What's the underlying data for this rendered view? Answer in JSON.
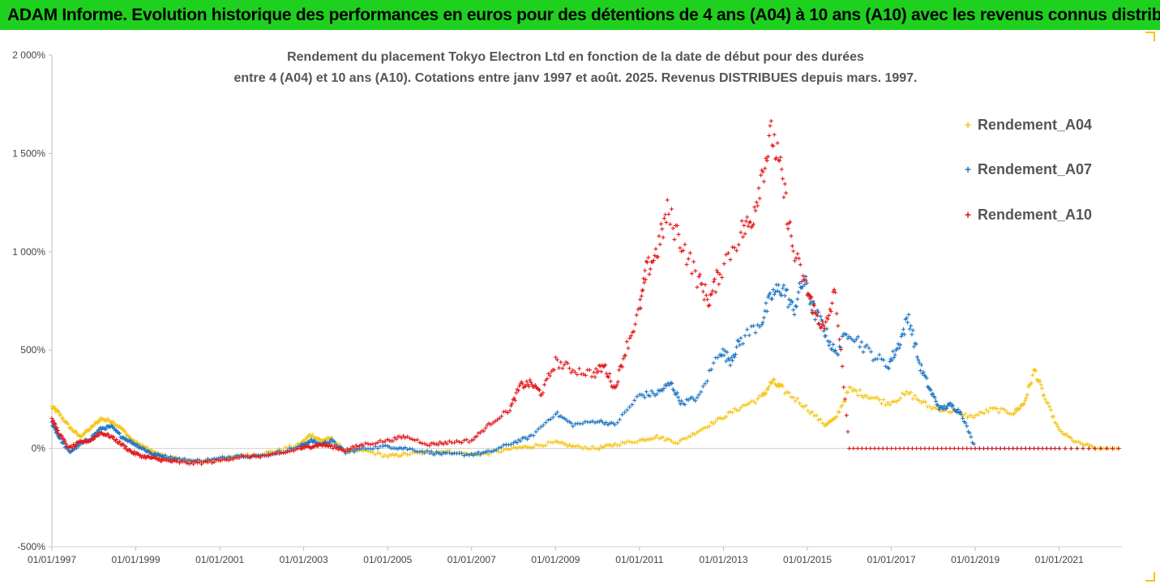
{
  "banner": {
    "title": "ADAM Informe. Evolution historique des performances en euros pour des détentions de 4 ans (A04) à 10 ans (A10) avec les revenus connus distribués"
  },
  "colors": {
    "banner_bg": "#1fd11f",
    "A04": "#f5c518",
    "A07": "#1f77c4",
    "A10": "#e31a1c",
    "frame_accent": "#f5c518"
  },
  "chart_data": {
    "type": "scatter",
    "title_line1": "Rendement du placement Tokyo Electron Ltd en fonction de la date de début pour des durées",
    "title_line2": "entre 4 (A04) et 10 ans (A10). Cotations entre janv 1997 et août. 2025. Revenus DISTRIBUES depuis mars. 1997.",
    "xlabel": "",
    "ylabel": "",
    "x_range": [
      "1997-01-01",
      "2022-06-30"
    ],
    "ylim": [
      -500,
      2000
    ],
    "y_ticks": [
      -500,
      0,
      500,
      1000,
      1500,
      2000
    ],
    "y_tick_labels": [
      "-500%",
      "0%",
      "500%",
      "1 000%",
      "1 500%",
      "2 000%"
    ],
    "x_tick_labels": [
      "01/01/1997",
      "01/01/1999",
      "01/01/2001",
      "01/01/2003",
      "01/01/2005",
      "01/01/2007",
      "01/01/2009",
      "01/01/2011",
      "01/01/2013",
      "01/01/2015",
      "01/01/2017",
      "01/01/2019",
      "01/01/2021"
    ],
    "x_tick_dates": [
      "1997-01-01",
      "1999-01-01",
      "2001-01-01",
      "2003-01-01",
      "2005-01-01",
      "2007-01-01",
      "2009-01-01",
      "2011-01-01",
      "2013-01-01",
      "2015-01-01",
      "2017-01-01",
      "2019-01-01",
      "2021-01-01"
    ],
    "legend_position": "right",
    "grid": false,
    "series": [
      {
        "name": "Rendement_A04",
        "marker": "+",
        "points": [
          [
            "1997-01-01",
            210
          ],
          [
            "1997-03-01",
            180
          ],
          [
            "1997-06-01",
            110
          ],
          [
            "1997-09-01",
            60
          ],
          [
            "1997-12-01",
            100
          ],
          [
            "1998-03-01",
            150
          ],
          [
            "1998-06-01",
            140
          ],
          [
            "1998-09-01",
            100
          ],
          [
            "1998-12-01",
            40
          ],
          [
            "1999-03-01",
            10
          ],
          [
            "1999-06-01",
            -20
          ],
          [
            "1999-09-01",
            -40
          ],
          [
            "2000-01-01",
            -55
          ],
          [
            "2000-06-01",
            -65
          ],
          [
            "2000-12-01",
            -60
          ],
          [
            "2001-06-01",
            -40
          ],
          [
            "2001-12-01",
            -30
          ],
          [
            "2002-06-01",
            -10
          ],
          [
            "2002-12-01",
            20
          ],
          [
            "2003-03-01",
            70
          ],
          [
            "2003-06-01",
            40
          ],
          [
            "2003-09-01",
            50
          ],
          [
            "2004-01-01",
            -20
          ],
          [
            "2004-06-01",
            -10
          ],
          [
            "2005-01-01",
            -40
          ],
          [
            "2005-06-01",
            -30
          ],
          [
            "2006-01-01",
            -20
          ],
          [
            "2006-06-01",
            -15
          ],
          [
            "2007-01-01",
            -30
          ],
          [
            "2007-06-01",
            -25
          ],
          [
            "2008-01-01",
            0
          ],
          [
            "2008-06-01",
            10
          ],
          [
            "2009-01-01",
            30
          ],
          [
            "2009-06-01",
            10
          ],
          [
            "2010-01-01",
            0
          ],
          [
            "2010-06-01",
            20
          ],
          [
            "2011-01-01",
            40
          ],
          [
            "2011-06-01",
            60
          ],
          [
            "2011-12-01",
            30
          ],
          [
            "2012-06-01",
            90
          ],
          [
            "2012-12-01",
            150
          ],
          [
            "2013-06-01",
            210
          ],
          [
            "2013-12-01",
            260
          ],
          [
            "2014-03-01",
            340
          ],
          [
            "2014-06-01",
            300
          ],
          [
            "2014-12-01",
            220
          ],
          [
            "2015-06-01",
            120
          ],
          [
            "2015-09-01",
            150
          ],
          [
            "2016-01-01",
            300
          ],
          [
            "2016-06-01",
            270
          ],
          [
            "2016-12-01",
            230
          ],
          [
            "2017-06-01",
            280
          ],
          [
            "2017-12-01",
            210
          ],
          [
            "2018-06-01",
            190
          ],
          [
            "2018-12-01",
            160
          ],
          [
            "2019-06-01",
            200
          ],
          [
            "2019-12-01",
            180
          ],
          [
            "2020-03-01",
            230
          ],
          [
            "2020-06-01",
            400
          ],
          [
            "2020-09-01",
            250
          ],
          [
            "2021-01-01",
            90
          ],
          [
            "2021-06-01",
            30
          ],
          [
            "2021-12-01",
            0
          ],
          [
            "2022-06-01",
            0
          ]
        ]
      },
      {
        "name": "Rendement_A07",
        "marker": "+",
        "points": [
          [
            "1997-01-01",
            130
          ],
          [
            "1997-03-01",
            60
          ],
          [
            "1997-06-01",
            -20
          ],
          [
            "1997-09-01",
            20
          ],
          [
            "1997-12-01",
            50
          ],
          [
            "1998-03-01",
            100
          ],
          [
            "1998-06-01",
            110
          ],
          [
            "1998-09-01",
            60
          ],
          [
            "1998-12-01",
            30
          ],
          [
            "1999-03-01",
            0
          ],
          [
            "1999-06-01",
            -30
          ],
          [
            "1999-09-01",
            -40
          ],
          [
            "2000-01-01",
            -55
          ],
          [
            "2000-06-01",
            -65
          ],
          [
            "2000-12-01",
            -55
          ],
          [
            "2001-06-01",
            -35
          ],
          [
            "2001-12-01",
            -40
          ],
          [
            "2002-06-01",
            -20
          ],
          [
            "2002-12-01",
            10
          ],
          [
            "2003-03-01",
            40
          ],
          [
            "2003-06-01",
            20
          ],
          [
            "2003-09-01",
            40
          ],
          [
            "2004-01-01",
            -20
          ],
          [
            "2004-06-01",
            0
          ],
          [
            "2005-01-01",
            10
          ],
          [
            "2005-06-01",
            0
          ],
          [
            "2006-01-01",
            -20
          ],
          [
            "2006-06-01",
            -30
          ],
          [
            "2007-01-01",
            -30
          ],
          [
            "2007-06-01",
            -20
          ],
          [
            "2008-01-01",
            30
          ],
          [
            "2008-06-01",
            60
          ],
          [
            "2009-01-01",
            180
          ],
          [
            "2009-06-01",
            120
          ],
          [
            "2010-01-01",
            140
          ],
          [
            "2010-06-01",
            120
          ],
          [
            "2011-01-01",
            270
          ],
          [
            "2011-06-01",
            280
          ],
          [
            "2011-10-01",
            330
          ],
          [
            "2012-01-01",
            230
          ],
          [
            "2012-06-01",
            260
          ],
          [
            "2012-12-01",
            500
          ],
          [
            "2013-03-01",
            450
          ],
          [
            "2013-06-01",
            550
          ],
          [
            "2013-12-01",
            650
          ],
          [
            "2014-03-01",
            780
          ],
          [
            "2014-06-01",
            820
          ],
          [
            "2014-09-01",
            700
          ],
          [
            "2014-12-01",
            860
          ],
          [
            "2015-03-01",
            700
          ],
          [
            "2015-06-01",
            600
          ],
          [
            "2015-09-01",
            480
          ],
          [
            "2016-01-01",
            600
          ],
          [
            "2016-06-01",
            500
          ],
          [
            "2016-12-01",
            420
          ],
          [
            "2017-03-01",
            520
          ],
          [
            "2017-06-01",
            670
          ],
          [
            "2017-09-01",
            430
          ],
          [
            "2017-12-01",
            300
          ],
          [
            "2018-03-01",
            200
          ],
          [
            "2018-06-01",
            220
          ],
          [
            "2018-09-01",
            180
          ],
          [
            "2019-01-01",
            0
          ],
          [
            "2020-01-01",
            0
          ],
          [
            "2021-01-01",
            0
          ],
          [
            "2022-06-01",
            0
          ]
        ]
      },
      {
        "name": "Rendement_A10",
        "marker": "+",
        "points": [
          [
            "1997-01-01",
            150
          ],
          [
            "1997-03-01",
            80
          ],
          [
            "1997-06-01",
            0
          ],
          [
            "1997-09-01",
            30
          ],
          [
            "1997-12-01",
            40
          ],
          [
            "1998-03-01",
            80
          ],
          [
            "1998-06-01",
            60
          ],
          [
            "1998-09-01",
            20
          ],
          [
            "1998-12-01",
            -20
          ],
          [
            "1999-03-01",
            -40
          ],
          [
            "1999-06-01",
            -50
          ],
          [
            "1999-09-01",
            -60
          ],
          [
            "2000-01-01",
            -70
          ],
          [
            "2000-06-01",
            -75
          ],
          [
            "2000-12-01",
            -65
          ],
          [
            "2001-06-01",
            -45
          ],
          [
            "2001-12-01",
            -40
          ],
          [
            "2002-06-01",
            -30
          ],
          [
            "2002-12-01",
            0
          ],
          [
            "2003-03-01",
            10
          ],
          [
            "2003-06-01",
            20
          ],
          [
            "2003-09-01",
            10
          ],
          [
            "2004-01-01",
            -10
          ],
          [
            "2004-06-01",
            20
          ],
          [
            "2005-01-01",
            40
          ],
          [
            "2005-06-01",
            60
          ],
          [
            "2006-01-01",
            20
          ],
          [
            "2006-06-01",
            30
          ],
          [
            "2007-01-01",
            40
          ],
          [
            "2007-06-01",
            120
          ],
          [
            "2007-12-01",
            200
          ],
          [
            "2008-03-01",
            320
          ],
          [
            "2008-06-01",
            330
          ],
          [
            "2008-09-01",
            280
          ],
          [
            "2009-01-01",
            440
          ],
          [
            "2009-06-01",
            400
          ],
          [
            "2009-12-01",
            380
          ],
          [
            "2010-03-01",
            420
          ],
          [
            "2010-06-01",
            300
          ],
          [
            "2010-09-01",
            500
          ],
          [
            "2011-01-01",
            700
          ],
          [
            "2011-03-01",
            900
          ],
          [
            "2011-06-01",
            1000
          ],
          [
            "2011-09-01",
            1200
          ],
          [
            "2012-01-01",
            1050
          ],
          [
            "2012-06-01",
            850
          ],
          [
            "2012-09-01",
            750
          ],
          [
            "2012-12-01",
            900
          ],
          [
            "2013-06-01",
            1100
          ],
          [
            "2013-09-01",
            1150
          ],
          [
            "2013-12-01",
            1400
          ],
          [
            "2014-03-01",
            1600
          ],
          [
            "2014-06-01",
            1350
          ],
          [
            "2014-09-01",
            1000
          ],
          [
            "2015-01-01",
            800
          ],
          [
            "2015-03-01",
            700
          ],
          [
            "2015-06-01",
            600
          ],
          [
            "2015-09-01",
            800
          ],
          [
            "2016-01-01",
            0
          ],
          [
            "2017-01-01",
            0
          ],
          [
            "2018-01-01",
            0
          ],
          [
            "2019-01-01",
            0
          ],
          [
            "2020-01-01",
            0
          ],
          [
            "2021-01-01",
            0
          ],
          [
            "2022-06-01",
            0
          ]
        ]
      }
    ]
  }
}
